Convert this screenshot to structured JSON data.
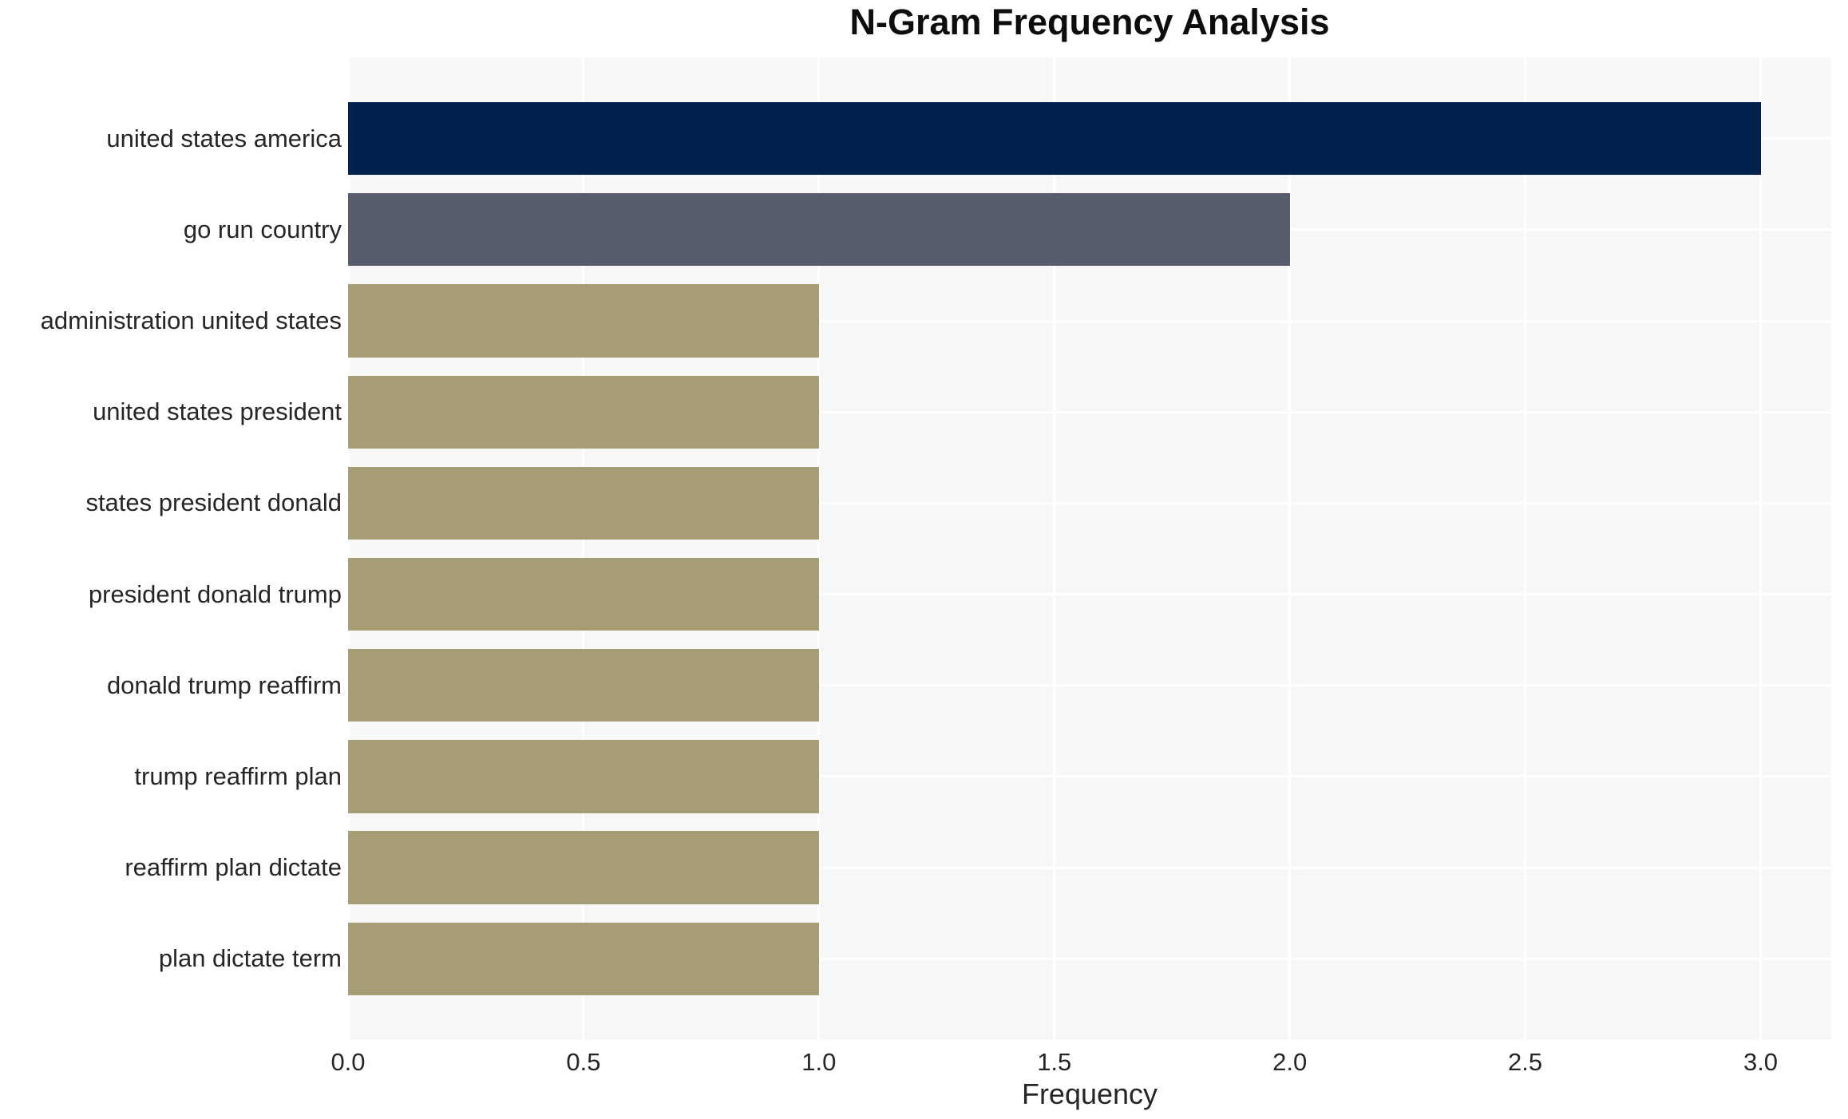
{
  "chart_data": {
    "type": "bar",
    "orientation": "horizontal",
    "title": "N-Gram Frequency Analysis",
    "xlabel": "Frequency",
    "ylabel": "",
    "categories": [
      "united states america",
      "go run country",
      "administration united states",
      "united states president",
      "states president donald",
      "president donald trump",
      "donald trump reaffirm",
      "trump reaffirm plan",
      "reaffirm plan dictate",
      "plan dictate term"
    ],
    "values": [
      3,
      2,
      1,
      1,
      1,
      1,
      1,
      1,
      1,
      1
    ],
    "bar_colors": [
      "#02224E",
      "#575D6D",
      "#A69D74",
      "#A69D74",
      "#A69D74",
      "#A69D74",
      "#A69D74",
      "#A69D74",
      "#A69D74",
      "#A69D74"
    ],
    "xlim": [
      0,
      3.15
    ],
    "xticks": [
      0.0,
      0.5,
      1.0,
      1.5,
      2.0,
      2.5,
      3.0
    ],
    "xtick_labels": [
      "0.0",
      "0.5",
      "1.0",
      "1.5",
      "2.0",
      "2.5",
      "3.0"
    ],
    "grid": true,
    "legend": false,
    "colors": {
      "figure_background": "#FFFFFF",
      "plot_background": "#F7F7F8",
      "grid_color": "#FFFFFF",
      "tick_text_color": "#262626",
      "title_color": "#0D0D0D"
    }
  }
}
